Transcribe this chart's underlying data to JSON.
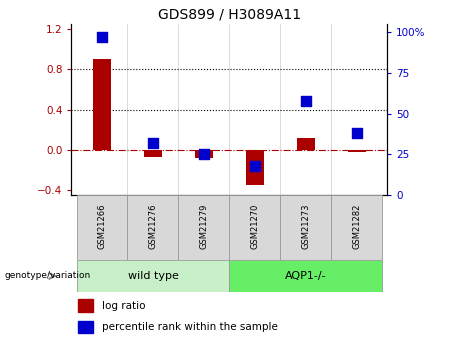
{
  "title": "GDS899 / H3089A11",
  "samples": [
    "GSM21266",
    "GSM21276",
    "GSM21279",
    "GSM21270",
    "GSM21273",
    "GSM21282"
  ],
  "log_ratios": [
    0.9,
    -0.07,
    -0.08,
    -0.35,
    0.12,
    -0.02
  ],
  "percentile_ranks": [
    97,
    32,
    25,
    18,
    58,
    38
  ],
  "group_labels": [
    "wild type",
    "AQP1-/-"
  ],
  "group_color_light": "#C8F0C8",
  "group_color_dark": "#66EE66",
  "bar_color": "#AA0000",
  "dot_color": "#0000CC",
  "ylim_left": [
    -0.45,
    1.25
  ],
  "ylim_right": [
    0,
    105
  ],
  "yticks_left": [
    -0.4,
    0.0,
    0.4,
    0.8,
    1.2
  ],
  "yticks_right": [
    0,
    25,
    50,
    75,
    100
  ],
  "ytick_labels_right": [
    "0",
    "25",
    "50",
    "75",
    "100%"
  ],
  "hlines": [
    0.4,
    0.8
  ],
  "hline_zero_color": "#AA0000",
  "hline_color": "black",
  "bar_width": 0.35,
  "dot_size": 45,
  "group_label_text": "genotype/variation",
  "legend_log_ratio": "log ratio",
  "legend_percentile": "percentile rank within the sample",
  "tick_label_color_left": "#AA0000",
  "tick_label_color_right": "#0000CC",
  "sample_box_color": "#D8D8D8",
  "figsize": [
    4.61,
    3.45
  ],
  "dpi": 100
}
